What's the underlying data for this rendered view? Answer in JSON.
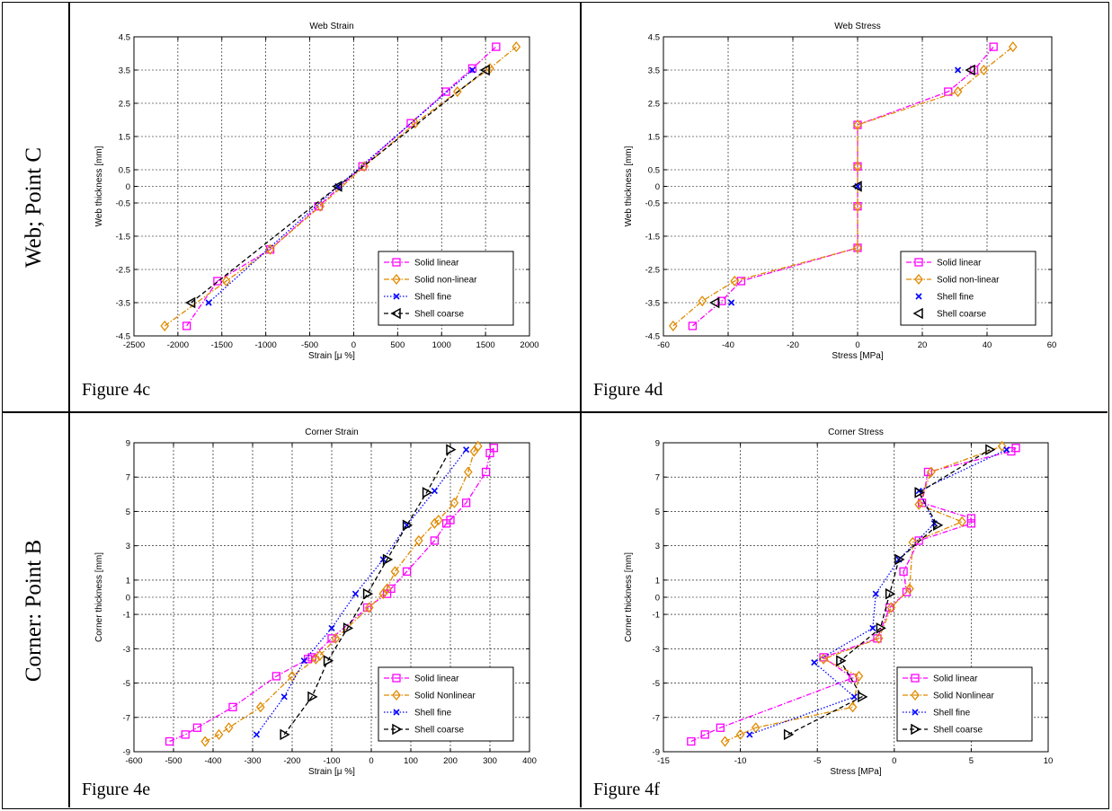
{
  "row_labels": [
    "Web; Point C",
    "Corner: Point B"
  ],
  "figure_labels": [
    "Figure 4c",
    "Figure 4d",
    "Figure 4e",
    "Figure 4f"
  ],
  "chart_data": [
    {
      "type": "line",
      "title": "Web Strain",
      "xlabel": "Strain [μ %]",
      "ylabel": "Web thickness [mm]",
      "xlim": [
        -2500,
        2000
      ],
      "ylim": [
        -4.5,
        4.5
      ],
      "xticks": [
        -2500,
        -2000,
        -1500,
        -1000,
        -500,
        0,
        500,
        1000,
        1500,
        2000
      ],
      "yticks": [
        -4.5,
        -3.5,
        -2.5,
        -1.5,
        -0.5,
        0,
        0.5,
        1.5,
        2.5,
        3.5,
        4.5
      ],
      "grid": true,
      "legend_position": "bottom-right",
      "series": [
        {
          "name": "Solid linear",
          "color": "#ff00ff",
          "linestyle": "dashdot",
          "marker": "square",
          "points": [
            [
              -1900,
              -4.2
            ],
            [
              -1550,
              -2.85
            ],
            [
              -950,
              -1.9
            ],
            [
              -400,
              -0.6
            ],
            [
              100,
              0.6
            ],
            [
              650,
              1.9
            ],
            [
              1050,
              2.85
            ],
            [
              1350,
              3.55
            ],
            [
              1620,
              4.2
            ]
          ]
        },
        {
          "name": "Solid non-linear",
          "color": "#e08a00",
          "linestyle": "dashdot",
          "marker": "diamond",
          "points": [
            [
              -2150,
              -4.2
            ],
            [
              -1450,
              -2.85
            ],
            [
              -950,
              -1.9
            ],
            [
              -380,
              -0.6
            ],
            [
              120,
              0.6
            ],
            [
              700,
              1.9
            ],
            [
              1180,
              2.85
            ],
            [
              1550,
              3.55
            ],
            [
              1850,
              4.2
            ]
          ]
        },
        {
          "name": "Shell fine",
          "color": "#0000ff",
          "linestyle": "dotted",
          "marker": "x",
          "points": [
            [
              -1650,
              -3.5
            ],
            [
              -180,
              0
            ],
            [
              1350,
              3.5
            ]
          ]
        },
        {
          "name": "Shell coarse",
          "color": "#000000",
          "linestyle": "dashed",
          "marker": "triangle-left",
          "points": [
            [
              -1850,
              -3.5
            ],
            [
              -180,
              0
            ],
            [
              1500,
              3.5
            ]
          ]
        }
      ]
    },
    {
      "type": "line",
      "title": "Web Stress",
      "xlabel": "Stress [MPa]",
      "ylabel": "Web thickness [mm]",
      "xlim": [
        -60,
        60
      ],
      "ylim": [
        -4.5,
        4.5
      ],
      "xticks": [
        -60,
        -40,
        -20,
        0,
        20,
        40,
        60
      ],
      "yticks": [
        -4.5,
        -3.5,
        -2.5,
        -1.5,
        -0.5,
        0,
        0.5,
        1.5,
        2.5,
        3.5,
        4.5
      ],
      "grid": true,
      "legend_position": "bottom-right",
      "series": [
        {
          "name": "Solid linear",
          "color": "#ff00ff",
          "linestyle": "dashdot",
          "marker": "square",
          "points": [
            [
              -51,
              -4.2
            ],
            [
              -42,
              -3.45
            ],
            [
              -36,
              -2.85
            ],
            [
              0,
              -1.85
            ],
            [
              0,
              -0.6
            ],
            [
              0,
              0.6
            ],
            [
              0,
              1.85
            ],
            [
              28,
              2.85
            ],
            [
              36,
              3.5
            ],
            [
              42,
              4.2
            ]
          ]
        },
        {
          "name": "Solid non-linear",
          "color": "#e08a00",
          "linestyle": "dashdot",
          "marker": "diamond",
          "points": [
            [
              -57,
              -4.2
            ],
            [
              -48,
              -3.45
            ],
            [
              -38,
              -2.85
            ],
            [
              0,
              -1.85
            ],
            [
              0,
              -0.6
            ],
            [
              0,
              0.6
            ],
            [
              0,
              1.85
            ],
            [
              31,
              2.85
            ],
            [
              39,
              3.5
            ],
            [
              48,
              4.2
            ]
          ]
        },
        {
          "name": "Shell fine",
          "color": "#0000ff",
          "linestyle": "none",
          "marker": "x",
          "points": [
            [
              -39,
              -3.5
            ],
            [
              0,
              0
            ],
            [
              31,
              3.5
            ]
          ]
        },
        {
          "name": "Shell coarse",
          "color": "#000000",
          "linestyle": "none",
          "marker": "triangle-left",
          "points": [
            [
              -44,
              -3.5
            ],
            [
              0,
              0
            ],
            [
              35,
              3.5
            ]
          ]
        }
      ]
    },
    {
      "type": "line",
      "title": "Corner Strain",
      "xlabel": "Strain [μ %]",
      "ylabel": "Corner thickness [mm]",
      "xlim": [
        -600,
        400
      ],
      "ylim": [
        -9,
        9
      ],
      "xticks": [
        -600,
        -500,
        -400,
        -300,
        -200,
        -100,
        0,
        100,
        200,
        300,
        400
      ],
      "yticks": [
        -9,
        -7,
        -5,
        -3,
        -1,
        0,
        1,
        3,
        5,
        7,
        9
      ],
      "grid": true,
      "legend_position": "bottom-right",
      "series": [
        {
          "name": "Solid linear",
          "color": "#ff00ff",
          "linestyle": "dashdot",
          "marker": "square",
          "points": [
            [
              -510,
              -8.4
            ],
            [
              -470,
              -8.0
            ],
            [
              -440,
              -7.6
            ],
            [
              -350,
              -6.4
            ],
            [
              -240,
              -4.6
            ],
            [
              -160,
              -3.6
            ],
            [
              -150,
              -3.5
            ],
            [
              -100,
              -2.4
            ],
            [
              -10,
              -0.6
            ],
            [
              40,
              0.2
            ],
            [
              50,
              0.5
            ],
            [
              90,
              1.5
            ],
            [
              160,
              3.3
            ],
            [
              190,
              4.3
            ],
            [
              200,
              4.5
            ],
            [
              240,
              5.5
            ],
            [
              290,
              7.3
            ],
            [
              300,
              8.4
            ],
            [
              310,
              8.7
            ]
          ]
        },
        {
          "name": "Solid Nonlinear",
          "color": "#e08a00",
          "linestyle": "dashdot",
          "marker": "diamond",
          "points": [
            [
              -420,
              -8.4
            ],
            [
              -385,
              -8.0
            ],
            [
              -360,
              -7.6
            ],
            [
              -280,
              -6.4
            ],
            [
              -200,
              -4.6
            ],
            [
              -140,
              -3.6
            ],
            [
              -130,
              -3.4
            ],
            [
              -90,
              -2.4
            ],
            [
              -5,
              -0.6
            ],
            [
              30,
              0.2
            ],
            [
              40,
              0.5
            ],
            [
              60,
              1.5
            ],
            [
              120,
              3.3
            ],
            [
              160,
              4.3
            ],
            [
              170,
              4.5
            ],
            [
              210,
              5.5
            ],
            [
              245,
              7.3
            ],
            [
              260,
              8.5
            ],
            [
              270,
              8.8
            ]
          ]
        },
        {
          "name": "Shell fine",
          "color": "#0000ff",
          "linestyle": "dotted",
          "marker": "x",
          "points": [
            [
              -290,
              -8.0
            ],
            [
              -220,
              -5.8
            ],
            [
              -170,
              -3.7
            ],
            [
              -100,
              -1.8
            ],
            [
              -40,
              0.2
            ],
            [
              30,
              2.2
            ],
            [
              90,
              4.2
            ],
            [
              160,
              6.2
            ],
            [
              240,
              8.6
            ]
          ]
        },
        {
          "name": "Shell coarse",
          "color": "#000000",
          "linestyle": "dashed",
          "marker": "triangle-right",
          "points": [
            [
              -220,
              -8.0
            ],
            [
              -150,
              -5.8
            ],
            [
              -110,
              -3.7
            ],
            [
              -60,
              -1.8
            ],
            [
              -10,
              0.2
            ],
            [
              40,
              2.2
            ],
            [
              90,
              4.2
            ],
            [
              140,
              6.1
            ],
            [
              200,
              8.6
            ]
          ]
        }
      ]
    },
    {
      "type": "line",
      "title": "Corner Stress",
      "xlabel": "Stress [MPa]",
      "ylabel": "Corner thickness [mm]",
      "xlim": [
        -15,
        10
      ],
      "ylim": [
        -9,
        9
      ],
      "xticks": [
        -15,
        -10,
        -5,
        0,
        5,
        10
      ],
      "yticks": [
        -9,
        -7,
        -5,
        -3,
        -1,
        0,
        1,
        3,
        5,
        7,
        9
      ],
      "grid": true,
      "legend_position": "bottom-right",
      "series": [
        {
          "name": "Solid linear",
          "color": "#ff00ff",
          "linestyle": "dashdot",
          "marker": "square",
          "points": [
            [
              -13.2,
              -8.4
            ],
            [
              -12.3,
              -8.0
            ],
            [
              -11.3,
              -7.6
            ],
            [
              -2.7,
              -4.7
            ],
            [
              -4.6,
              -3.5
            ],
            [
              -1.1,
              -2.4
            ],
            [
              -0.3,
              -0.6
            ],
            [
              0.8,
              0.3
            ],
            [
              0.6,
              1.5
            ],
            [
              1.6,
              3.3
            ],
            [
              5.0,
              4.3
            ],
            [
              5.0,
              4.6
            ],
            [
              1.8,
              5.5
            ],
            [
              2.2,
              7.3
            ],
            [
              7.6,
              8.5
            ],
            [
              7.9,
              8.7
            ]
          ]
        },
        {
          "name": "Solid Nonlinear",
          "color": "#e08a00",
          "linestyle": "dashdot",
          "marker": "diamond",
          "points": [
            [
              -11.0,
              -8.4
            ],
            [
              -10.0,
              -8.0
            ],
            [
              -9.0,
              -7.6
            ],
            [
              -2.7,
              -6.4
            ],
            [
              -2.3,
              -4.6
            ],
            [
              -4.6,
              -3.6
            ],
            [
              -1.0,
              -2.4
            ],
            [
              -0.2,
              -0.6
            ],
            [
              1.0,
              0.5
            ],
            [
              1.2,
              3.2
            ],
            [
              4.4,
              4.4
            ],
            [
              1.6,
              5.4
            ],
            [
              2.4,
              7.3
            ],
            [
              7.0,
              8.8
            ]
          ]
        },
        {
          "name": "Shell fine",
          "color": "#0000ff",
          "linestyle": "dotted",
          "marker": "x",
          "points": [
            [
              -9.4,
              -8.0
            ],
            [
              -2.6,
              -5.8
            ],
            [
              -5.2,
              -3.8
            ],
            [
              -1.4,
              -1.8
            ],
            [
              -1.2,
              0.2
            ],
            [
              0.3,
              2.2
            ],
            [
              2.6,
              4.3
            ],
            [
              1.6,
              6.2
            ],
            [
              7.3,
              8.6
            ]
          ]
        },
        {
          "name": "Shell coarse",
          "color": "#000000",
          "linestyle": "dashed",
          "marker": "triangle-right",
          "points": [
            [
              -6.9,
              -8.0
            ],
            [
              -2.1,
              -5.8
            ],
            [
              -3.5,
              -3.7
            ],
            [
              -0.9,
              -1.8
            ],
            [
              -0.3,
              0.2
            ],
            [
              0.3,
              2.2
            ],
            [
              2.8,
              4.2
            ],
            [
              1.6,
              6.1
            ],
            [
              6.2,
              8.6
            ]
          ]
        }
      ]
    }
  ]
}
